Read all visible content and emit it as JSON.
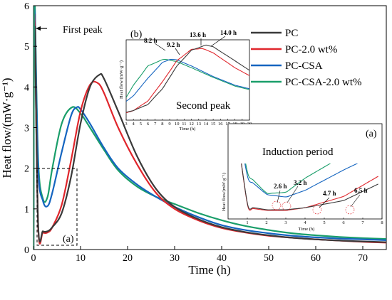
{
  "chart_data": [
    {
      "type": "line",
      "xlabel": "Time (h)",
      "ylabel": "Heat flow/(mW·g⁻¹)",
      "xlim": [
        0,
        75
      ],
      "ylim": [
        0,
        6
      ],
      "x_ticks": [
        "0",
        "10",
        "20",
        "30",
        "40",
        "50",
        "60",
        "70"
      ],
      "y_ticks": [
        "0",
        "1",
        "2",
        "3",
        "4",
        "5",
        "6"
      ],
      "legend": "top-right",
      "annotations": {
        "first_peak": "First peak",
        "zoom_box": "(a)"
      },
      "series": [
        {
          "name": "PC",
          "color": "#3a3a3a",
          "x": [
            0.3,
            1,
            2,
            3,
            4,
            6,
            8,
            10,
            12,
            14,
            15,
            18,
            22,
            26,
            30,
            35,
            40,
            45,
            50,
            55,
            60,
            65,
            70,
            75
          ],
          "y": [
            5.5,
            0.6,
            0.45,
            0.45,
            0.55,
            0.9,
            1.8,
            3.1,
            4.0,
            4.3,
            4.2,
            3.4,
            2.3,
            1.5,
            1.05,
            0.75,
            0.55,
            0.43,
            0.35,
            0.29,
            0.25,
            0.22,
            0.2,
            0.18
          ]
        },
        {
          "name": "PC-2.0 wt%",
          "color": "#e0262c",
          "x": [
            0.3,
            1,
            2,
            3,
            4,
            6,
            8,
            10,
            12,
            13.6,
            15,
            18,
            22,
            26,
            30,
            35,
            40,
            45,
            50,
            55,
            60,
            65,
            70,
            75
          ],
          "y": [
            5.5,
            0.55,
            0.42,
            0.42,
            0.55,
            1.1,
            2.2,
            3.4,
            4.05,
            4.1,
            3.85,
            3.0,
            2.1,
            1.4,
            1.0,
            0.72,
            0.53,
            0.42,
            0.34,
            0.29,
            0.25,
            0.22,
            0.19,
            0.17
          ]
        },
        {
          "name": "PC-CSA",
          "color": "#1565c0",
          "x": [
            0.3,
            1,
            2,
            3,
            4,
            6,
            8,
            9.2,
            10,
            12,
            15,
            18,
            22,
            26,
            30,
            35,
            40,
            45,
            50,
            55,
            60,
            65,
            70,
            75
          ],
          "y": [
            5.8,
            2.0,
            1.2,
            1.07,
            1.4,
            2.4,
            3.3,
            3.5,
            3.45,
            3.1,
            2.5,
            2.0,
            1.6,
            1.3,
            1.05,
            0.8,
            0.6,
            0.48,
            0.4,
            0.34,
            0.3,
            0.27,
            0.25,
            0.23
          ]
        },
        {
          "name": "PC-CSA-2.0 wt%",
          "color": "#1a9e6a",
          "x": [
            0.3,
            1,
            2,
            3,
            4,
            6,
            8.2,
            10,
            12,
            15,
            18,
            22,
            26,
            30,
            35,
            40,
            45,
            50,
            55,
            60,
            65,
            70,
            75
          ],
          "y": [
            6.0,
            2.2,
            1.25,
            1.3,
            2.0,
            3.1,
            3.5,
            3.35,
            3.0,
            2.45,
            1.95,
            1.55,
            1.3,
            1.12,
            0.9,
            0.72,
            0.58,
            0.48,
            0.4,
            0.35,
            0.31,
            0.28,
            0.26
          ]
        }
      ]
    },
    {
      "type": "line",
      "panel": "(b)",
      "title": "Second peak",
      "xlabel": "Time (h)",
      "ylabel": "Heat flow/(mW·g⁻¹)",
      "xlim": [
        3,
        20
      ],
      "x_ticks": [
        "3",
        "4",
        "5",
        "6",
        "7",
        "8",
        "9",
        "10",
        "11",
        "12",
        "13",
        "14",
        "15",
        "16",
        "17",
        "18",
        "19",
        "20"
      ],
      "peak_labels": [
        "8.2 h",
        "9.2 h",
        "13.6 h",
        "14.0 h"
      ]
    },
    {
      "type": "line",
      "panel": "(a)",
      "title": "Induction period",
      "xlabel": "Time (h)",
      "ylabel": "Heat flow/(mW·g⁻¹)",
      "xlim": [
        0,
        8
      ],
      "x_ticks": [
        "1",
        "2",
        "3",
        "4",
        "5",
        "6",
        "7",
        "8"
      ],
      "minimum_labels": [
        "2.6 h",
        "3.2 h",
        "4.7 h",
        "6.5 h"
      ]
    }
  ]
}
